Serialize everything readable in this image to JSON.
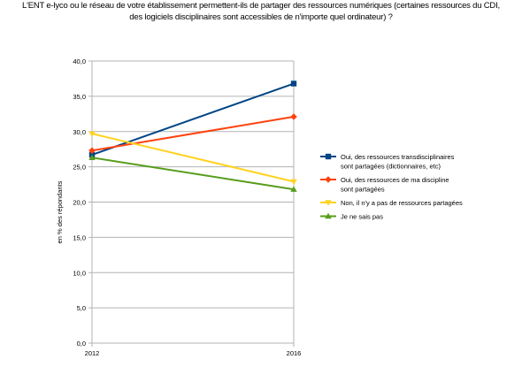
{
  "chart_data": {
    "type": "line",
    "title_lines": [
      "L'ENT e-lyco ou le réseau de votre établissement permettent-ils de partager des ressources numériques (certaines ressources du CDI,",
      "des logiciels disciplinaires sont accessibles de n'importe quel ordinateur) ?"
    ],
    "ylabel": "en % des répondants",
    "xlabel": "",
    "x": [
      "2012",
      "2016"
    ],
    "ylim": [
      0,
      40
    ],
    "yticks": [
      "0,0",
      "5,0",
      "10,0",
      "15,0",
      "20,0",
      "25,0",
      "30,0",
      "35,0",
      "40,0"
    ],
    "grid": true,
    "legend_position": "right",
    "series": [
      {
        "name_lines": [
          "Oui, des ressources transdisciplinaires",
          "sont partagées (dictionnaires, etc)"
        ],
        "values": [
          26.7,
          36.8
        ],
        "color": "#004586",
        "marker": "square"
      },
      {
        "name_lines": [
          "Oui, des ressources de ma discipline",
          "sont partagées"
        ],
        "values": [
          27.3,
          32.1
        ],
        "color": "#ff420e",
        "marker": "diamond"
      },
      {
        "name_lines": [
          "Non, il n'y a pas de ressources partagées"
        ],
        "values": [
          29.7,
          22.9
        ],
        "color": "#ffd320",
        "marker": "triangle-down"
      },
      {
        "name_lines": [
          "Je ne sais pas"
        ],
        "values": [
          26.3,
          21.8
        ],
        "color": "#579d1c",
        "marker": "triangle-up"
      }
    ]
  }
}
